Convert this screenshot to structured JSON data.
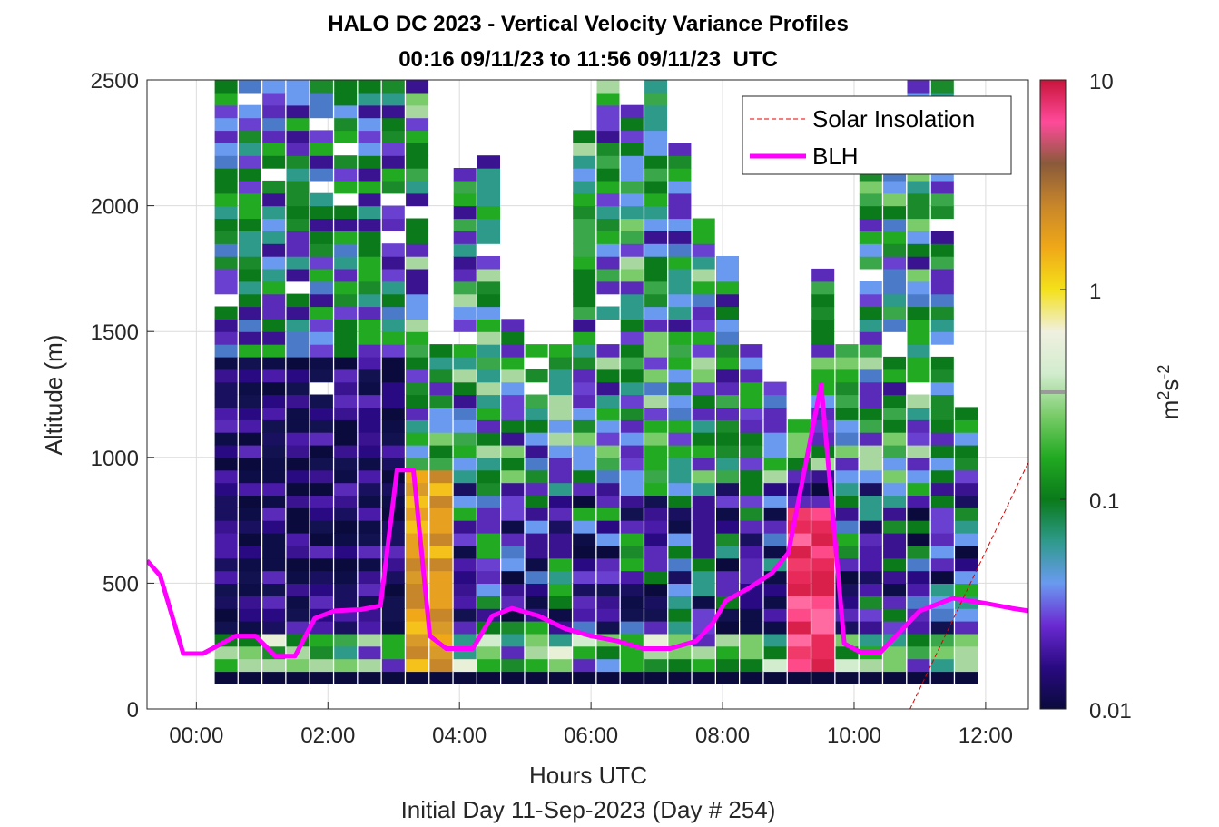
{
  "chart_data": {
    "type": "heatmap",
    "title": "HALO DC 2023 - Vertical Velocity Variance Profiles",
    "subtitle": "00:16 09/11/23 to 11:56 09/11/23  UTC",
    "xlabel": "Hours UTC",
    "ylabel": "Altitude (m)",
    "footer": "Initial Day 11-Sep-2023 (Day # 254)",
    "x_tick_labels": [
      "00:00",
      "02:00",
      "04:00",
      "06:00",
      "08:00",
      "10:00",
      "12:00"
    ],
    "x_tick_hours": [
      0,
      2,
      4,
      6,
      8,
      10,
      12
    ],
    "y_ticks": [
      0,
      500,
      1000,
      1500,
      2000,
      2500
    ],
    "xlim_hours": [
      -0.75,
      12.65
    ],
    "ylim": [
      0,
      2500
    ],
    "colorbar": {
      "label": "m²s⁻²",
      "label_base": "m",
      "label_sup1": "2",
      "label_mid": "s",
      "label_sup2": "-2",
      "scale": "log",
      "range": [
        0.01,
        10
      ],
      "tick_values": [
        0.01,
        0.1,
        1,
        10
      ],
      "tick_labels": [
        "0.01",
        "0.1",
        "1",
        "10"
      ],
      "colormap_stops": [
        "#0a0a3c",
        "#2a0a82",
        "#6a2ad2",
        "#6a9af0",
        "#2e9a8a",
        "#0a7a1a",
        "#22aa22",
        "#7acc6a",
        "#d2ecce",
        "#f0f0e0",
        "#f4e01a",
        "#f0a818",
        "#c8862a",
        "#8a5a3a",
        "#ff4a9a",
        "#c8143a"
      ]
    },
    "legend": {
      "position": "top-right",
      "entries": [
        {
          "label": "Solar Insolation",
          "color": "#e00000",
          "style": "dashed"
        },
        {
          "label": "BLH",
          "color": "#ff00ff",
          "style": "solid"
        }
      ]
    },
    "series": [
      {
        "name": "BLH",
        "color": "#ff00ff",
        "x_hours": [
          -0.75,
          -0.55,
          -0.2,
          0.1,
          0.6,
          0.9,
          1.2,
          1.5,
          1.8,
          2.1,
          2.5,
          2.8,
          3.05,
          3.3,
          3.55,
          3.8,
          4.2,
          4.5,
          4.8,
          5.2,
          5.6,
          6.0,
          6.4,
          6.8,
          7.2,
          7.6,
          7.85,
          8.05,
          8.4,
          8.75,
          9.0,
          9.5,
          9.85,
          10.1,
          10.4,
          11.0,
          11.5,
          12.0,
          12.4,
          12.65
        ],
        "y_m": [
          590,
          530,
          220,
          220,
          290,
          290,
          210,
          210,
          360,
          390,
          395,
          410,
          950,
          950,
          290,
          240,
          240,
          370,
          400,
          370,
          320,
          290,
          270,
          240,
          240,
          270,
          340,
          430,
          480,
          540,
          620,
          1290,
          260,
          225,
          225,
          390,
          440,
          420,
          400,
          390
        ]
      },
      {
        "name": "Solar Insolation",
        "color": "#e00000",
        "x_hours": [
          -0.75,
          10.85,
          12.65
        ],
        "y_m": [
          0,
          0,
          980
        ]
      }
    ]
  }
}
